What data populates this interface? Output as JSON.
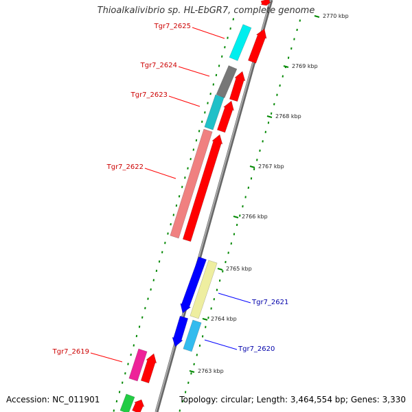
{
  "title": "Thioalkalivibrio sp. HL-EbGR7, complete genome",
  "footer": {
    "accession": "Accession: NC_011901",
    "summary": "Topology: circular; Length: 3,464,554 bp; Genes: 3,330"
  },
  "ruler": [
    "2770 kbp",
    "2769 kbp",
    "2768 kbp",
    "2767 kbp",
    "2766 kbp",
    "2765 kbp",
    "2764 kbp",
    "2763 kbp"
  ],
  "genes": [
    {
      "label": "Tgr7_2625",
      "color": "#cc0000"
    },
    {
      "label": "Tgr7_2624",
      "color": "#cc0000"
    },
    {
      "label": "Tgr7_2623",
      "color": "#cc0000"
    },
    {
      "label": "Tgr7_2622",
      "color": "#cc0000"
    },
    {
      "label": "Tgr7_2621",
      "color": "#0000aa"
    },
    {
      "label": "Tgr7_2620",
      "color": "#0000aa"
    },
    {
      "label": "Tgr7_2619",
      "color": "#cc0000"
    }
  ],
  "colors": {
    "backbone": "#888888",
    "tick": "#008800",
    "reverse_cds": "#ff0000",
    "forward_cds": "#0000ff"
  }
}
